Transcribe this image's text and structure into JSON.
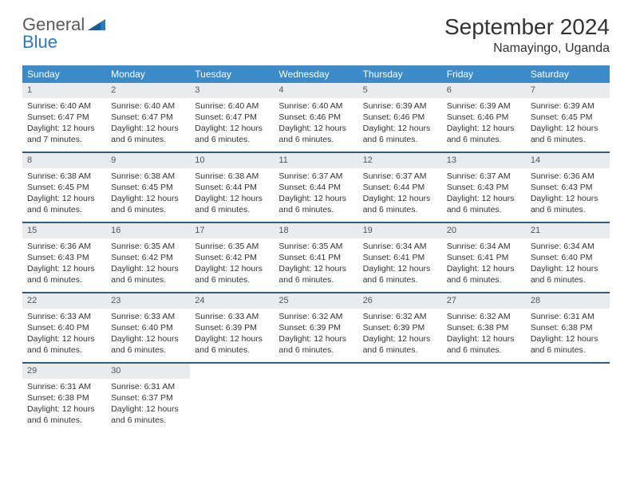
{
  "brand": {
    "name1": "General",
    "name2": "Blue"
  },
  "title": "September 2024",
  "location": "Namayingo, Uganda",
  "colors": {
    "header_bg": "#3b8bc9",
    "header_text": "#ffffff",
    "week_border": "#2a5c8a",
    "daynum_bg": "#e8ecef",
    "text": "#333333",
    "brand_gray": "#5a5a5a",
    "brand_blue": "#2b7bbf",
    "page_bg": "#ffffff"
  },
  "typography": {
    "title_fontsize": 28,
    "location_fontsize": 16,
    "dayhead_fontsize": 12,
    "cell_fontsize": 10.5,
    "daynum_fontsize": 11,
    "logo_fontsize": 22
  },
  "day_names": [
    "Sunday",
    "Monday",
    "Tuesday",
    "Wednesday",
    "Thursday",
    "Friday",
    "Saturday"
  ],
  "weeks": [
    [
      {
        "day": 1,
        "sunrise": "6:40 AM",
        "sunset": "6:47 PM",
        "daylight": "12 hours and 7 minutes."
      },
      {
        "day": 2,
        "sunrise": "6:40 AM",
        "sunset": "6:47 PM",
        "daylight": "12 hours and 6 minutes."
      },
      {
        "day": 3,
        "sunrise": "6:40 AM",
        "sunset": "6:47 PM",
        "daylight": "12 hours and 6 minutes."
      },
      {
        "day": 4,
        "sunrise": "6:40 AM",
        "sunset": "6:46 PM",
        "daylight": "12 hours and 6 minutes."
      },
      {
        "day": 5,
        "sunrise": "6:39 AM",
        "sunset": "6:46 PM",
        "daylight": "12 hours and 6 minutes."
      },
      {
        "day": 6,
        "sunrise": "6:39 AM",
        "sunset": "6:46 PM",
        "daylight": "12 hours and 6 minutes."
      },
      {
        "day": 7,
        "sunrise": "6:39 AM",
        "sunset": "6:45 PM",
        "daylight": "12 hours and 6 minutes."
      }
    ],
    [
      {
        "day": 8,
        "sunrise": "6:38 AM",
        "sunset": "6:45 PM",
        "daylight": "12 hours and 6 minutes."
      },
      {
        "day": 9,
        "sunrise": "6:38 AM",
        "sunset": "6:45 PM",
        "daylight": "12 hours and 6 minutes."
      },
      {
        "day": 10,
        "sunrise": "6:38 AM",
        "sunset": "6:44 PM",
        "daylight": "12 hours and 6 minutes."
      },
      {
        "day": 11,
        "sunrise": "6:37 AM",
        "sunset": "6:44 PM",
        "daylight": "12 hours and 6 minutes."
      },
      {
        "day": 12,
        "sunrise": "6:37 AM",
        "sunset": "6:44 PM",
        "daylight": "12 hours and 6 minutes."
      },
      {
        "day": 13,
        "sunrise": "6:37 AM",
        "sunset": "6:43 PM",
        "daylight": "12 hours and 6 minutes."
      },
      {
        "day": 14,
        "sunrise": "6:36 AM",
        "sunset": "6:43 PM",
        "daylight": "12 hours and 6 minutes."
      }
    ],
    [
      {
        "day": 15,
        "sunrise": "6:36 AM",
        "sunset": "6:43 PM",
        "daylight": "12 hours and 6 minutes."
      },
      {
        "day": 16,
        "sunrise": "6:35 AM",
        "sunset": "6:42 PM",
        "daylight": "12 hours and 6 minutes."
      },
      {
        "day": 17,
        "sunrise": "6:35 AM",
        "sunset": "6:42 PM",
        "daylight": "12 hours and 6 minutes."
      },
      {
        "day": 18,
        "sunrise": "6:35 AM",
        "sunset": "6:41 PM",
        "daylight": "12 hours and 6 minutes."
      },
      {
        "day": 19,
        "sunrise": "6:34 AM",
        "sunset": "6:41 PM",
        "daylight": "12 hours and 6 minutes."
      },
      {
        "day": 20,
        "sunrise": "6:34 AM",
        "sunset": "6:41 PM",
        "daylight": "12 hours and 6 minutes."
      },
      {
        "day": 21,
        "sunrise": "6:34 AM",
        "sunset": "6:40 PM",
        "daylight": "12 hours and 6 minutes."
      }
    ],
    [
      {
        "day": 22,
        "sunrise": "6:33 AM",
        "sunset": "6:40 PM",
        "daylight": "12 hours and 6 minutes."
      },
      {
        "day": 23,
        "sunrise": "6:33 AM",
        "sunset": "6:40 PM",
        "daylight": "12 hours and 6 minutes."
      },
      {
        "day": 24,
        "sunrise": "6:33 AM",
        "sunset": "6:39 PM",
        "daylight": "12 hours and 6 minutes."
      },
      {
        "day": 25,
        "sunrise": "6:32 AM",
        "sunset": "6:39 PM",
        "daylight": "12 hours and 6 minutes."
      },
      {
        "day": 26,
        "sunrise": "6:32 AM",
        "sunset": "6:39 PM",
        "daylight": "12 hours and 6 minutes."
      },
      {
        "day": 27,
        "sunrise": "6:32 AM",
        "sunset": "6:38 PM",
        "daylight": "12 hours and 6 minutes."
      },
      {
        "day": 28,
        "sunrise": "6:31 AM",
        "sunset": "6:38 PM",
        "daylight": "12 hours and 6 minutes."
      }
    ],
    [
      {
        "day": 29,
        "sunrise": "6:31 AM",
        "sunset": "6:38 PM",
        "daylight": "12 hours and 6 minutes."
      },
      {
        "day": 30,
        "sunrise": "6:31 AM",
        "sunset": "6:37 PM",
        "daylight": "12 hours and 6 minutes."
      },
      null,
      null,
      null,
      null,
      null
    ]
  ],
  "labels": {
    "sunrise_prefix": "Sunrise: ",
    "sunset_prefix": "Sunset: ",
    "daylight_prefix": "Daylight: "
  }
}
